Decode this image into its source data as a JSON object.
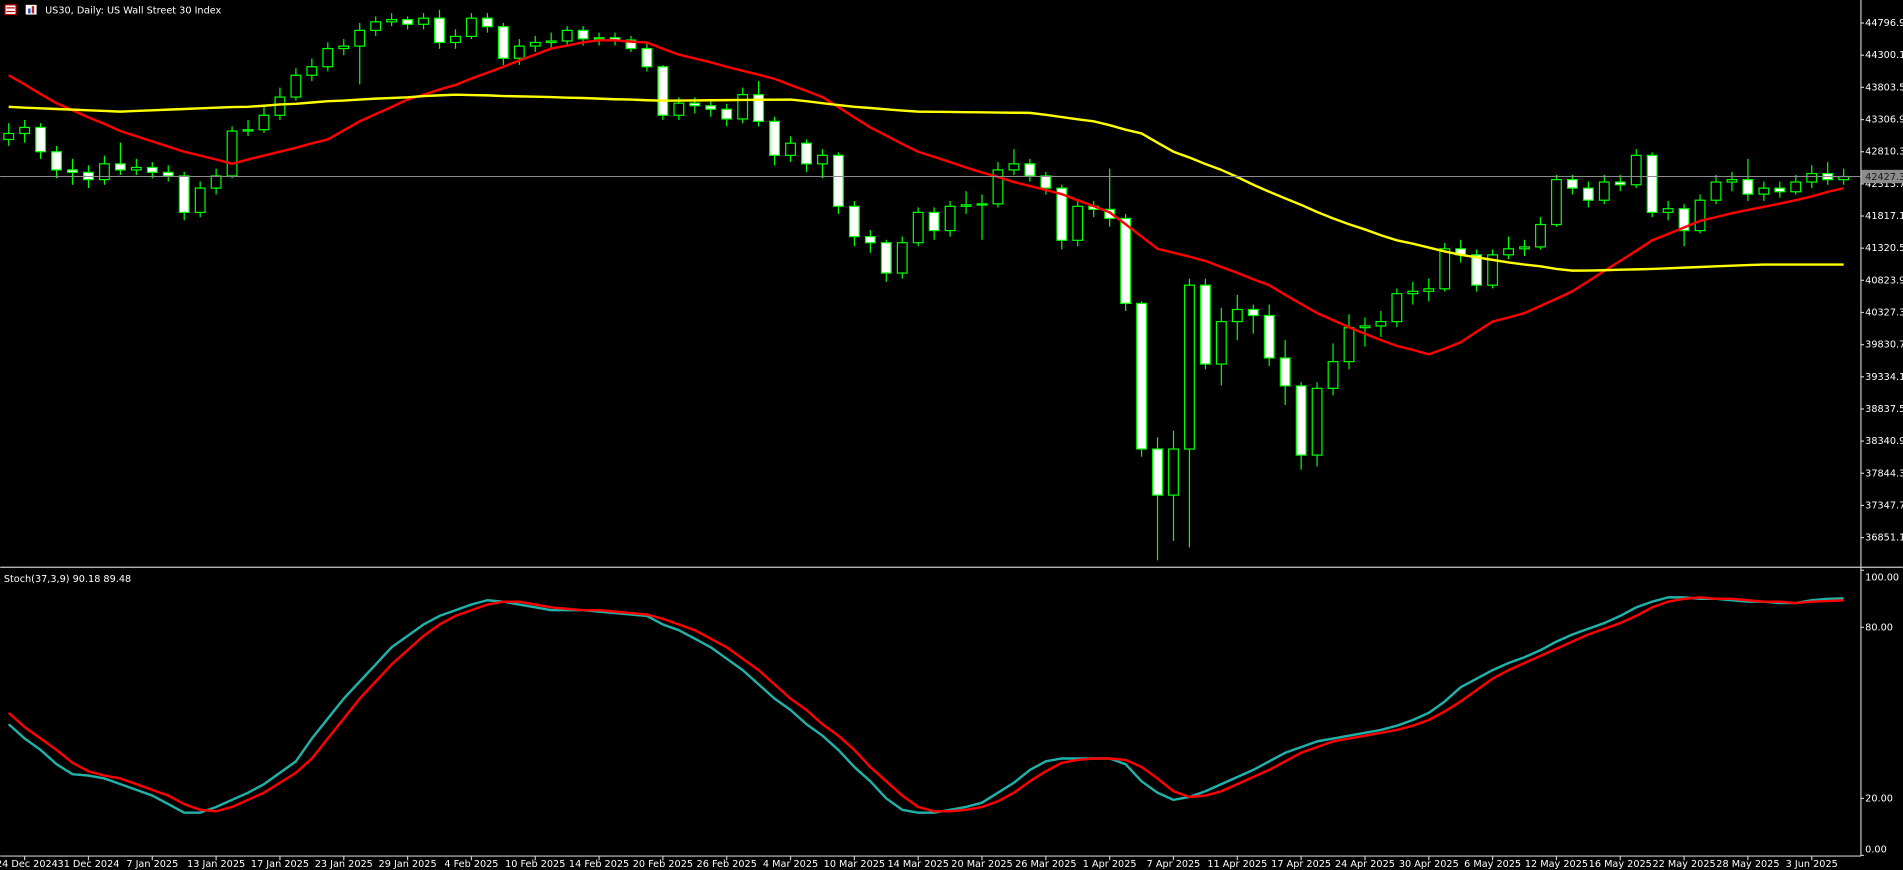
{
  "chart_data": [
    {
      "type": "candlestick",
      "title": "US30, Daily:  US Wall Street 30 Index",
      "categories": [
        null,
        "24 Dec 2024",
        null,
        null,
        null,
        "31 Dec 2024",
        null,
        null,
        null,
        "7 Jan 2025",
        null,
        null,
        null,
        "13 Jan 2025",
        null,
        null,
        null,
        "17 Jan 2025",
        null,
        null,
        null,
        "23 Jan 2025",
        null,
        null,
        null,
        "29 Jan 2025",
        null,
        null,
        null,
        "4 Feb 2025",
        null,
        null,
        null,
        "10 Feb 2025",
        null,
        null,
        null,
        "14 Feb 2025",
        null,
        null,
        null,
        "20 Feb 2025",
        null,
        null,
        null,
        "26 Feb 2025",
        null,
        null,
        null,
        "4 Mar 2025",
        null,
        null,
        null,
        "10 Mar 2025",
        null,
        null,
        null,
        "14 Mar 2025",
        null,
        null,
        null,
        "20 Mar 2025",
        null,
        null,
        null,
        "26 Mar 2025",
        null,
        null,
        null,
        "1 Apr 2025",
        null,
        null,
        null,
        "7 Apr 2025",
        null,
        null,
        null,
        "11 Apr 2025",
        null,
        null,
        null,
        "17 Apr 2025",
        null,
        null,
        null,
        "24 Apr 2025",
        null,
        null,
        null,
        "30 Apr 2025",
        null,
        null,
        null,
        "6 May 2025",
        null,
        null,
        null,
        "12 May 2025",
        null,
        null,
        null,
        "16 May 2025",
        null,
        null,
        null,
        "22 May 2025",
        null,
        null,
        null,
        "28 May 2025",
        null,
        null,
        null,
        "3 Jun 2025",
        null,
        null
      ],
      "open": [
        43000,
        43092,
        43185,
        42810,
        42529,
        42492,
        42379,
        42623,
        42529,
        42567,
        42492,
        42436,
        41873,
        42248,
        42436,
        43129,
        43150,
        43373,
        43654,
        43991,
        44122,
        44403,
        44441,
        44684,
        44816,
        44850,
        44778,
        44872,
        44497,
        44591,
        44872,
        44741,
        44253,
        44441,
        44497,
        44520,
        44684,
        44553,
        44570,
        44535,
        44403,
        44122,
        43373,
        43560,
        43520,
        43466,
        43316,
        43691,
        43279,
        42754,
        42942,
        42623,
        42754,
        41967,
        41499,
        41405,
        40936,
        41405,
        41873,
        41592,
        41967,
        41990,
        42005,
        42529,
        42623,
        42436,
        42248,
        41442,
        41967,
        41920,
        41780,
        40468,
        38219,
        37507,
        38219,
        40749,
        39531,
        40187,
        40374,
        40281,
        39625,
        39194,
        38125,
        39156,
        39568,
        40093,
        40120,
        40187,
        40618,
        40655,
        40693,
        41311,
        41218,
        40749,
        41218,
        41311,
        41340,
        41686,
        42379,
        42248,
        42061,
        42342,
        42300,
        42754,
        41873,
        41930,
        41592,
        42061,
        42342,
        42379,
        42155,
        42248,
        42192,
        42342,
        42473,
        42379
      ],
      "high": [
        43250,
        43300,
        43250,
        42900,
        42700,
        42600,
        42750,
        42950,
        42700,
        42650,
        42600,
        42500,
        42350,
        42550,
        43200,
        43300,
        43500,
        43800,
        44100,
        44250,
        44500,
        44550,
        44800,
        44900,
        44950,
        44900,
        44950,
        45000,
        44700,
        44950,
        44950,
        44800,
        44550,
        44600,
        44650,
        44750,
        44750,
        44650,
        44650,
        44600,
        44500,
        44150,
        43650,
        43650,
        43600,
        43550,
        43800,
        43900,
        43350,
        43050,
        43000,
        42850,
        42800,
        42050,
        41600,
        41450,
        41500,
        41950,
        41950,
        42050,
        42200,
        42150,
        42650,
        42850,
        42700,
        42500,
        42300,
        42050,
        42050,
        42550,
        41850,
        40500,
        38400,
        38500,
        40850,
        40850,
        40400,
        40600,
        40450,
        40450,
        39900,
        39250,
        39250,
        39850,
        40300,
        40250,
        40350,
        40700,
        40800,
        40850,
        41400,
        41450,
        41300,
        41300,
        41500,
        41450,
        41800,
        42450,
        42450,
        42350,
        42450,
        42450,
        42850,
        42800,
        42050,
        42000,
        42150,
        42450,
        42500,
        42700,
        42350,
        42350,
        42450,
        42600,
        42650,
        42550
      ],
      "low": [
        42900,
        42950,
        42700,
        42400,
        42300,
        42250,
        42300,
        42450,
        42450,
        42400,
        42350,
        41750,
        41800,
        42150,
        42400,
        43050,
        43100,
        43300,
        43600,
        43900,
        44050,
        44300,
        43850,
        44600,
        44750,
        44700,
        44700,
        44400,
        44400,
        44550,
        44650,
        44150,
        44150,
        44350,
        44400,
        44450,
        44450,
        44450,
        44450,
        44350,
        44050,
        43300,
        43300,
        43400,
        43350,
        43200,
        43250,
        43200,
        42600,
        42650,
        42500,
        42400,
        41850,
        41350,
        41250,
        40800,
        40850,
        41350,
        41450,
        41500,
        41850,
        41450,
        41950,
        42450,
        42350,
        42150,
        41300,
        41350,
        41800,
        41650,
        40350,
        38100,
        36500,
        36800,
        36700,
        39450,
        39200,
        39900,
        40000,
        39500,
        38900,
        37900,
        37950,
        39050,
        39450,
        39800,
        39950,
        40100,
        40450,
        40500,
        40650,
        41100,
        40650,
        40700,
        41150,
        41200,
        41300,
        41650,
        42150,
        41950,
        42000,
        42200,
        42250,
        41800,
        41750,
        41350,
        41550,
        42000,
        42200,
        42050,
        42050,
        42100,
        42150,
        42250,
        42300,
        42300
      ],
      "close": [
        43092,
        43185,
        42810,
        42529,
        42492,
        42379,
        42623,
        42529,
        42567,
        42492,
        42436,
        41873,
        42248,
        42436,
        43129,
        43150,
        43373,
        43654,
        43991,
        44122,
        44403,
        44441,
        44684,
        44816,
        44850,
        44778,
        44872,
        44497,
        44591,
        44872,
        44741,
        44253,
        44441,
        44497,
        44520,
        44684,
        44553,
        44570,
        44535,
        44403,
        44122,
        43373,
        43560,
        43520,
        43466,
        43316,
        43691,
        43279,
        42754,
        42942,
        42623,
        42754,
        41967,
        41499,
        41405,
        40936,
        41405,
        41873,
        41592,
        41967,
        41990,
        42005,
        42529,
        42623,
        42436,
        42248,
        41442,
        41967,
        41920,
        41780,
        40468,
        38219,
        37507,
        38219,
        40749,
        39531,
        40187,
        40374,
        40281,
        39625,
        39194,
        38125,
        39156,
        39568,
        40093,
        40120,
        40187,
        40618,
        40655,
        40693,
        41311,
        41218,
        40749,
        41218,
        41311,
        41340,
        41686,
        42379,
        42248,
        42061,
        42342,
        42300,
        42754,
        41873,
        41930,
        41592,
        42061,
        42342,
        42379,
        42155,
        42248,
        42192,
        42342,
        42473,
        42379,
        42427
      ],
      "up_color": "#000000",
      "down_color": "#ffffff",
      "wick_color": "#00ff00",
      "series": [
        {
          "color": "#ff0000",
          "values": [
            43991,
            43850,
            43700,
            43560,
            43450,
            43340,
            43240,
            43129,
            43050,
            42970,
            42890,
            42810,
            42750,
            42690,
            42623,
            42690,
            42750,
            42810,
            42870,
            42940,
            43000,
            43140,
            43279,
            43390,
            43500,
            43616,
            43690,
            43770,
            43841,
            43940,
            44030,
            44122,
            44220,
            44310,
            44403,
            44450,
            44500,
            44530,
            44530,
            44510,
            44497,
            44400,
            44310,
            44250,
            44190,
            44122,
            44060,
            44000,
            43935,
            43840,
            43750,
            43654,
            43500,
            43340,
            43185,
            43060,
            42930,
            42810,
            42730,
            42650,
            42567,
            42490,
            42420,
            42342,
            42280,
            42220,
            42155,
            42060,
            41970,
            41873,
            41690,
            41500,
            41311,
            41250,
            41190,
            41124,
            41030,
            40940,
            40840,
            40749,
            40600,
            40460,
            40318,
            40210,
            40100,
            39999,
            39900,
            39812,
            39750,
            39681,
            39770,
            39868,
            40030,
            40187,
            40250,
            40318,
            40430,
            40540,
            40655,
            40810,
            40970,
            41124,
            41280,
            41442,
            41540,
            41640,
            41742,
            41800,
            41860,
            41911,
            41960,
            42010,
            42061,
            42120,
            42190,
            42248
          ]
        },
        {
          "color": "#ffff00",
          "values": [
            43504,
            43490,
            43480,
            43470,
            43460,
            43450,
            43440,
            43429,
            43440,
            43450,
            43460,
            43470,
            43480,
            43490,
            43500,
            43504,
            43520,
            43540,
            43550,
            43570,
            43590,
            43600,
            43616,
            43630,
            43640,
            43650,
            43670,
            43680,
            43691,
            43685,
            43680,
            43670,
            43665,
            43660,
            43654,
            43645,
            43640,
            43630,
            43620,
            43615,
            43605,
            43598,
            43600,
            43602,
            43605,
            43607,
            43610,
            43612,
            43614,
            43616,
            43590,
            43560,
            43530,
            43504,
            43485,
            43465,
            43445,
            43429,
            43426,
            43424,
            43421,
            43418,
            43415,
            43412,
            43410,
            43380,
            43345,
            43310,
            43279,
            43220,
            43150,
            43092,
            42950,
            42810,
            42720,
            42620,
            42529,
            42420,
            42300,
            42192,
            42090,
            41990,
            41880,
            41780,
            41690,
            41610,
            41520,
            41442,
            41390,
            41330,
            41270,
            41218,
            41180,
            41140,
            41100,
            41068,
            41040,
            41000,
            40974,
            40975,
            40980,
            40988,
            40993,
            41000,
            41010,
            41020,
            41030,
            41040,
            41050,
            41060,
            41068,
            41068,
            41068,
            41068,
            41068,
            41068
          ]
        }
      ],
      "current_price": 42427.3,
      "ylim": [
        36440,
        45153
      ],
      "yticks": [
        44796.9,
        44300.1,
        43803.5,
        43306.9,
        42810.3,
        42313.7,
        41817.1,
        41320.5,
        40823.9,
        40327.3,
        39830.7,
        39334.1,
        38837.5,
        38340.9,
        37844.3,
        37347.7,
        36851.1
      ],
      "grid": true
    },
    {
      "type": "line",
      "label": "Stoch(37,3,9) 90.18 89.48",
      "series": [
        {
          "color": "#20b2aa",
          "values": [
            46,
            41,
            37,
            32,
            28.5,
            28,
            27,
            25,
            23,
            21,
            18,
            15,
            15,
            17,
            19.5,
            22,
            25,
            29,
            33,
            41,
            48,
            55,
            61,
            67,
            73,
            77,
            81,
            84,
            86,
            88,
            89.5,
            89,
            88,
            87,
            86,
            86,
            86,
            85.5,
            85,
            84.5,
            84,
            81,
            79,
            76,
            73,
            69,
            65,
            60,
            55,
            51,
            46,
            42,
            37,
            31,
            26,
            20,
            16,
            15,
            15,
            16,
            17,
            18.5,
            22,
            25.5,
            30,
            33,
            34,
            34,
            34,
            34,
            32,
            26,
            22,
            19.5,
            20.5,
            22.5,
            25,
            27.5,
            30,
            33,
            36,
            38,
            40,
            41,
            42,
            43,
            44,
            45.5,
            47.5,
            50,
            54,
            59,
            62,
            65,
            67.5,
            69.5,
            72,
            75,
            77.5,
            79.5,
            81.5,
            84,
            87,
            89,
            90.5,
            90.5,
            90,
            90,
            89.5,
            89,
            89,
            88.5,
            88.5,
            89.5,
            90,
            90.18
          ]
        },
        {
          "color": "#ff0000",
          "values": [
            50,
            45,
            41,
            37,
            32.5,
            29.5,
            28,
            27,
            25,
            23,
            21,
            18,
            16,
            15.5,
            17,
            19.5,
            22,
            25.5,
            29,
            34,
            41,
            48,
            55,
            61,
            67,
            72,
            77,
            81,
            84,
            86,
            88,
            89,
            89,
            88,
            87,
            86.5,
            86,
            86,
            85.5,
            85,
            84.5,
            83,
            81,
            79,
            76,
            73,
            69,
            65,
            60,
            55,
            51,
            46,
            42,
            37,
            31,
            26,
            21,
            17,
            15.5,
            15.5,
            16,
            17,
            19,
            22,
            26,
            29.5,
            32.5,
            33.5,
            34,
            34,
            33.5,
            31,
            27,
            22.5,
            20.5,
            21,
            22.5,
            25,
            27.5,
            30,
            33,
            36,
            38,
            40,
            41,
            42,
            43,
            44,
            45.5,
            47.5,
            50.5,
            54,
            58,
            62,
            65,
            67.5,
            70,
            72.5,
            75,
            77.5,
            79.5,
            81.5,
            84,
            87,
            89,
            90,
            90.5,
            90,
            90,
            89.5,
            89,
            89,
            88.5,
            89,
            89.2,
            89.48
          ]
        }
      ],
      "ylim": [
        0,
        100
      ],
      "yticks": [
        {
          "value": 100,
          "label": "100.00"
        },
        {
          "value": 80,
          "label": "80.00"
        },
        {
          "value": 20,
          "label": "20.00"
        },
        {
          "value": 0,
          "label": "0.00"
        }
      ],
      "grid": true
    }
  ]
}
